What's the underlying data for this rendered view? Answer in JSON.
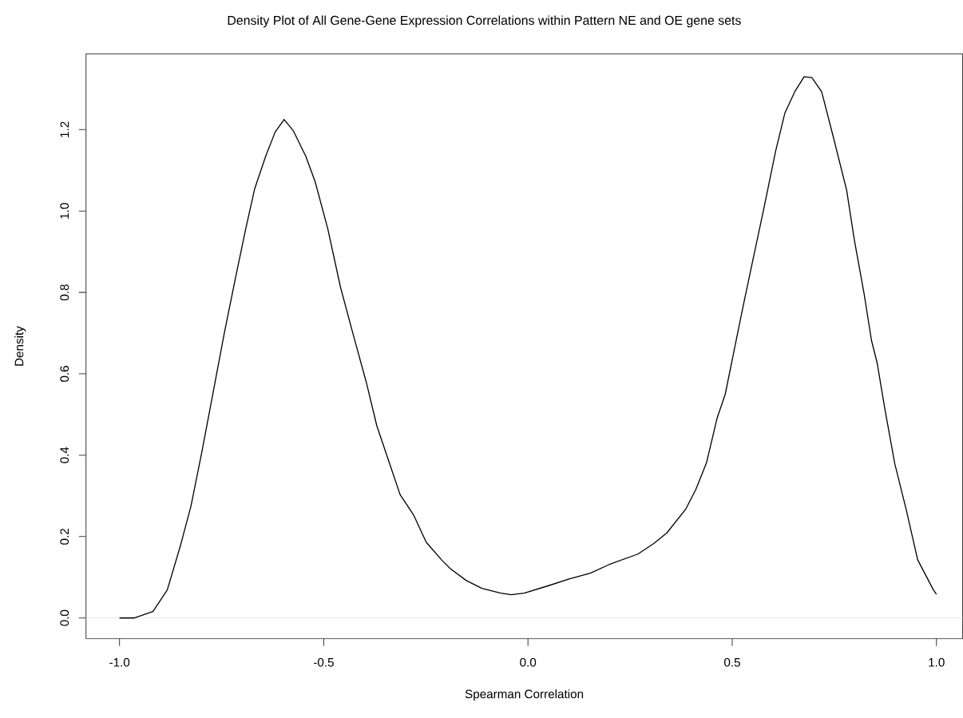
{
  "chart_data": {
    "type": "line",
    "title": "Density Plot of All Gene-Gene Expression Correlations within Pattern NE and OE gene sets",
    "xlabel": "Spearman Correlation",
    "ylabel": "Density",
    "series": [
      {
        "color": "#000000",
        "x": [
          -1.0,
          -0.963,
          -0.918,
          -0.883,
          -0.851,
          -0.825,
          -0.798,
          -0.771,
          -0.744,
          -0.717,
          -0.691,
          -0.669,
          -0.642,
          -0.619,
          -0.597,
          -0.575,
          -0.544,
          -0.521,
          -0.49,
          -0.459,
          -0.428,
          -0.396,
          -0.37,
          -0.343,
          -0.313,
          -0.28,
          -0.249,
          -0.21,
          -0.19,
          -0.151,
          -0.113,
          -0.067,
          -0.041,
          -0.009,
          0.049,
          0.101,
          0.153,
          0.198,
          0.269,
          0.308,
          0.34,
          0.386,
          0.411,
          0.437,
          0.463,
          0.483,
          0.506,
          0.525,
          0.549,
          0.577,
          0.606,
          0.629,
          0.653,
          0.676,
          0.695,
          0.719,
          0.747,
          0.78,
          0.799,
          0.823,
          0.841,
          0.855,
          0.874,
          0.898,
          0.926,
          0.954,
          0.992,
          1.0
        ],
        "values": [
          0.0,
          0.0,
          0.016,
          0.069,
          0.177,
          0.275,
          0.41,
          0.553,
          0.697,
          0.831,
          0.956,
          1.055,
          1.135,
          1.194,
          1.225,
          1.198,
          1.135,
          1.072,
          0.956,
          0.813,
          0.697,
          0.58,
          0.472,
          0.392,
          0.303,
          0.253,
          0.186,
          0.141,
          0.121,
          0.092,
          0.073,
          0.061,
          0.057,
          0.061,
          0.079,
          0.096,
          0.11,
          0.131,
          0.157,
          0.183,
          0.209,
          0.267,
          0.316,
          0.381,
          0.491,
          0.55,
          0.664,
          0.758,
          0.872,
          1.004,
          1.146,
          1.241,
          1.293,
          1.33,
          1.328,
          1.293,
          1.184,
          1.052,
          0.929,
          0.796,
          0.682,
          0.626,
          0.512,
          0.379,
          0.266,
          0.143,
          0.07,
          0.058
        ]
      }
    ],
    "xlim": [
      -1.082,
      1.064
    ],
    "ylim": [
      -0.051,
      1.386
    ],
    "xticks": [
      {
        "value": -1,
        "label": "-1.0"
      },
      {
        "value": -0.5,
        "label": "-0.5"
      },
      {
        "value": 0,
        "label": "0.0"
      },
      {
        "value": 0.5,
        "label": "0.5"
      },
      {
        "value": 1,
        "label": "1.0"
      }
    ],
    "yticks": [
      {
        "value": 0,
        "label": "0.0"
      },
      {
        "value": 0.2,
        "label": "0.2"
      },
      {
        "value": 0.4,
        "label": "0.4"
      },
      {
        "value": 0.6,
        "label": "0.6"
      },
      {
        "value": 0.8,
        "label": "0.8"
      },
      {
        "value": 1,
        "label": "1.0"
      },
      {
        "value": 1.2,
        "label": "1.2"
      }
    ],
    "ref_lines": [
      {
        "axis": "y",
        "value": 0,
        "color": "#e6e6e6"
      }
    ],
    "grid": false,
    "marker": "none",
    "line_style": "solid"
  }
}
